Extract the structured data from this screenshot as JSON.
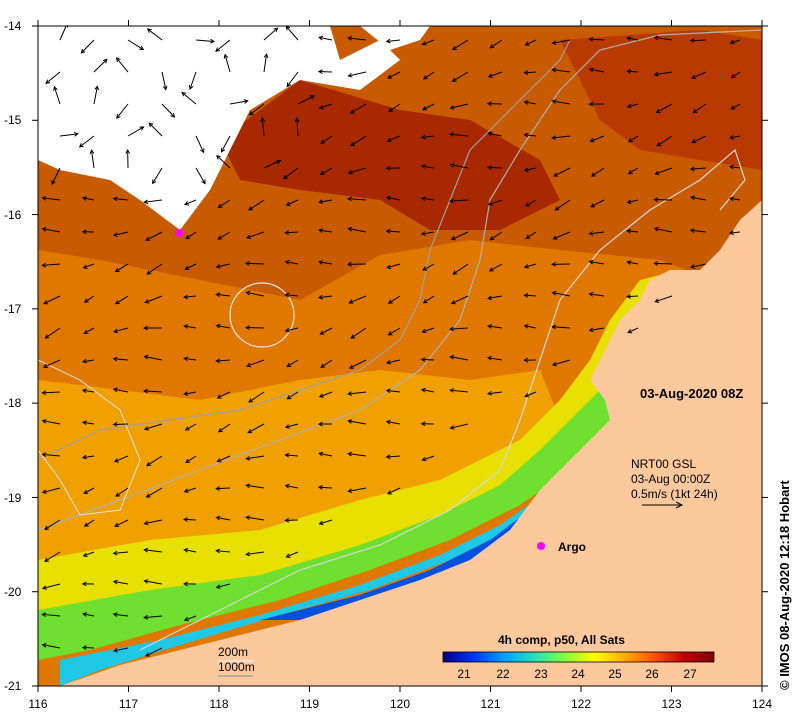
{
  "axes": {
    "lon_ticks": [
      "116",
      "117",
      "118",
      "119",
      "120",
      "121",
      "122",
      "123",
      "124"
    ],
    "lat_ticks": [
      "-14",
      "-15",
      "-16",
      "-17",
      "-18",
      "-19",
      "-20",
      "-21"
    ]
  },
  "labels": {
    "timestamp": "03-Aug-2020 08Z",
    "current_source": "NRT00 GSL",
    "current_time": "03-Aug 00:00Z",
    "current_scale": "0.5m/s (1kt 24h)",
    "argo": "Argo",
    "contour_200": "200m",
    "contour_1000": "1000m",
    "composite": "4h comp, p50, All Sats",
    "credit": "© IMOS 08-Aug-2020 12:18 Hobart"
  },
  "colorbar": {
    "ticks": [
      "21",
      "22",
      "23",
      "24",
      "25",
      "26",
      "27"
    ],
    "colors": [
      "#00007f",
      "#0030ff",
      "#00a0ff",
      "#20e0c0",
      "#80ff40",
      "#ffff00",
      "#ffb000",
      "#ff5000",
      "#c00000",
      "#7f0000"
    ]
  },
  "colors": {
    "land": "#fcc89c",
    "cloud": "#ffffff",
    "warm": "#e67a00",
    "argo": "#ff00ff"
  }
}
